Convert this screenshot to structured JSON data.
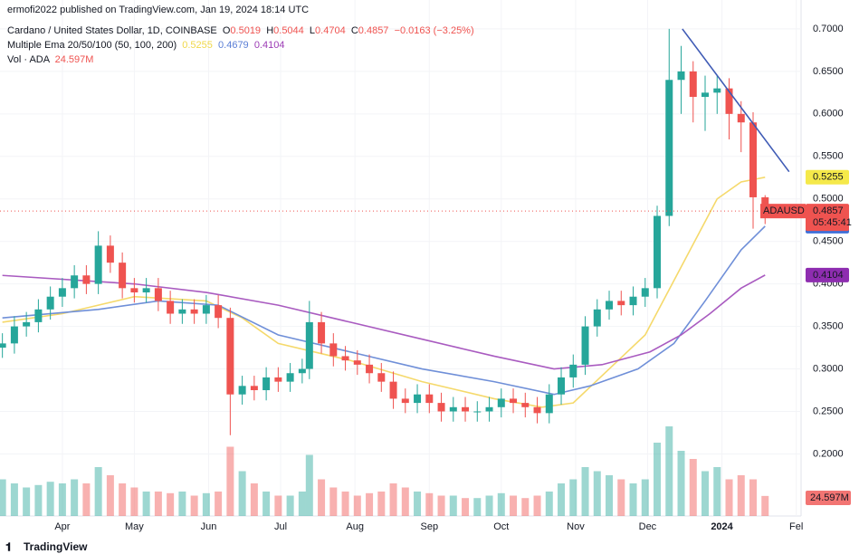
{
  "header": {
    "published": "ermofi2022 published on TradingView.com, Jan 19, 2024 18:14 UTC",
    "symbol": "Cardano / United States Dollar, 1D, COINBASE",
    "ohlc_labels": [
      "O",
      "H",
      "L",
      "C"
    ],
    "change": "−0.0163 (−3.25%)",
    "ema_legend": "Multiple Ema 20/50/100 (50, 100, 200)",
    "volume_legend": "Vol · ADA",
    "footer": "TradingView"
  },
  "chart_data": {
    "type": "candlestick",
    "up_color": "#26a69a",
    "down_color": "#ef5350",
    "xlim": [
      -26,
      308
    ],
    "xticks": [
      {
        "value": 0,
        "label": "Apr"
      },
      {
        "value": 30,
        "label": "May"
      },
      {
        "value": 61,
        "label": "Jun"
      },
      {
        "value": 91,
        "label": "Jul"
      },
      {
        "value": 122,
        "label": "Aug"
      },
      {
        "value": 153,
        "label": "Sep"
      },
      {
        "value": 183,
        "label": "Oct"
      },
      {
        "value": 214,
        "label": "Nov"
      },
      {
        "value": 244,
        "label": "Dec"
      },
      {
        "value": 275,
        "label": "2024"
      },
      {
        "value": 306,
        "label": "Fel"
      }
    ],
    "ylim": [
      0.127,
      0.734
    ],
    "yticks": [
      {
        "value": 0.2,
        "label": "0.2000"
      },
      {
        "value": 0.25,
        "label": "0.2500"
      },
      {
        "value": 0.3,
        "label": "0.3000"
      },
      {
        "value": 0.35,
        "label": "0.3500"
      },
      {
        "value": 0.4,
        "label": "0.4000"
      },
      {
        "value": 0.45,
        "label": "0.4500"
      },
      {
        "value": 0.5,
        "label": "0.5000"
      },
      {
        "value": 0.55,
        "label": "0.5500"
      },
      {
        "value": 0.6,
        "label": "0.6000"
      },
      {
        "value": 0.65,
        "label": "0.6500"
      },
      {
        "value": 0.7,
        "label": "0.7000"
      }
    ],
    "candles": {
      "x": [
        -25,
        -20,
        -15,
        -10,
        -5,
        0,
        5,
        10,
        15,
        20,
        25,
        30,
        35,
        40,
        45,
        50,
        55,
        60,
        65,
        70,
        75,
        80,
        85,
        90,
        95,
        100,
        103,
        108,
        113,
        118,
        123,
        128,
        133,
        138,
        143,
        148,
        153,
        158,
        163,
        168,
        173,
        178,
        183,
        188,
        193,
        198,
        203,
        208,
        213,
        218,
        223,
        228,
        233,
        238,
        243,
        248,
        253,
        258,
        263,
        268,
        273,
        278,
        283,
        288,
        293
      ],
      "open": [
        0.325,
        0.33,
        0.35,
        0.355,
        0.37,
        0.385,
        0.395,
        0.41,
        0.4,
        0.445,
        0.425,
        0.395,
        0.39,
        0.395,
        0.38,
        0.365,
        0.37,
        0.365,
        0.375,
        0.36,
        0.27,
        0.28,
        0.275,
        0.29,
        0.285,
        0.295,
        0.3,
        0.355,
        0.33,
        0.315,
        0.31,
        0.305,
        0.295,
        0.285,
        0.265,
        0.26,
        0.27,
        0.26,
        0.25,
        0.255,
        0.25,
        0.25,
        0.255,
        0.265,
        0.26,
        0.255,
        0.248,
        0.27,
        0.29,
        0.305,
        0.35,
        0.37,
        0.38,
        0.375,
        0.385,
        0.395,
        0.48,
        0.64,
        0.65,
        0.62,
        0.625,
        0.63,
        0.6,
        0.59,
        0.5019
      ],
      "high": [
        0.342,
        0.362,
        0.367,
        0.382,
        0.397,
        0.407,
        0.422,
        0.422,
        0.462,
        0.457,
        0.437,
        0.407,
        0.407,
        0.407,
        0.392,
        0.382,
        0.382,
        0.387,
        0.387,
        0.372,
        0.292,
        0.292,
        0.302,
        0.302,
        0.307,
        0.312,
        0.38,
        0.367,
        0.342,
        0.327,
        0.322,
        0.317,
        0.307,
        0.297,
        0.277,
        0.282,
        0.282,
        0.272,
        0.267,
        0.267,
        0.262,
        0.267,
        0.277,
        0.277,
        0.272,
        0.267,
        0.282,
        0.302,
        0.317,
        0.362,
        0.382,
        0.392,
        0.392,
        0.397,
        0.407,
        0.492,
        0.7,
        0.68,
        0.662,
        0.645,
        0.645,
        0.642,
        0.615,
        0.602,
        0.5044
      ],
      "low": [
        0.313,
        0.318,
        0.338,
        0.343,
        0.358,
        0.373,
        0.383,
        0.388,
        0.388,
        0.413,
        0.383,
        0.378,
        0.378,
        0.368,
        0.353,
        0.353,
        0.353,
        0.353,
        0.348,
        0.222,
        0.258,
        0.263,
        0.263,
        0.273,
        0.273,
        0.283,
        0.288,
        0.318,
        0.303,
        0.298,
        0.293,
        0.283,
        0.273,
        0.253,
        0.248,
        0.248,
        0.248,
        0.238,
        0.238,
        0.238,
        0.238,
        0.238,
        0.243,
        0.248,
        0.243,
        0.236,
        0.236,
        0.258,
        0.278,
        0.293,
        0.338,
        0.358,
        0.363,
        0.363,
        0.373,
        0.383,
        0.468,
        0.6,
        0.59,
        0.58,
        0.6,
        0.57,
        0.555,
        0.465,
        0.4704
      ],
      "close": [
        0.33,
        0.35,
        0.355,
        0.37,
        0.385,
        0.395,
        0.41,
        0.4,
        0.445,
        0.425,
        0.395,
        0.39,
        0.395,
        0.38,
        0.365,
        0.37,
        0.365,
        0.375,
        0.36,
        0.27,
        0.28,
        0.275,
        0.29,
        0.285,
        0.295,
        0.3,
        0.355,
        0.33,
        0.315,
        0.31,
        0.305,
        0.295,
        0.285,
        0.265,
        0.26,
        0.27,
        0.26,
        0.25,
        0.255,
        0.25,
        0.25,
        0.255,
        0.265,
        0.26,
        0.255,
        0.248,
        0.27,
        0.29,
        0.305,
        0.35,
        0.37,
        0.38,
        0.375,
        0.385,
        0.395,
        0.48,
        0.64,
        0.65,
        0.62,
        0.625,
        0.63,
        0.6,
        0.59,
        0.5019,
        0.4857
      ],
      "volume": [
        45,
        40,
        35,
        38,
        42,
        40,
        45,
        40,
        60,
        50,
        40,
        35,
        30,
        30,
        28,
        30,
        25,
        28,
        30,
        85,
        55,
        40,
        30,
        25,
        25,
        30,
        75,
        45,
        35,
        30,
        25,
        28,
        30,
        40,
        35,
        30,
        28,
        25,
        25,
        22,
        22,
        25,
        28,
        25,
        22,
        25,
        30,
        40,
        45,
        60,
        55,
        50,
        45,
        40,
        45,
        90,
        110,
        80,
        70,
        55,
        60,
        45,
        50,
        45,
        24.597
      ],
      "volume_label": "24.597M",
      "symbol_label": "ADAUSD",
      "countdown": "05:45:41"
    },
    "series": [
      {
        "color": "#f5d96b",
        "x": [
          -25,
          0,
          30,
          60,
          75,
          90,
          120,
          150,
          180,
          200,
          213,
          228,
          243,
          258,
          273,
          283,
          293
        ],
        "values": [
          0.355,
          0.365,
          0.385,
          0.38,
          0.36,
          0.33,
          0.31,
          0.285,
          0.265,
          0.255,
          0.26,
          0.3,
          0.34,
          0.42,
          0.5,
          0.52,
          0.5255
        ]
      },
      {
        "color": "#6f8fd8",
        "x": [
          -25,
          15,
          40,
          65,
          90,
          120,
          150,
          180,
          205,
          220,
          240,
          255,
          268,
          283,
          293
        ],
        "values": [
          0.36,
          0.37,
          0.38,
          0.375,
          0.34,
          0.32,
          0.3,
          0.285,
          0.27,
          0.28,
          0.3,
          0.33,
          0.38,
          0.44,
          0.4679
        ]
      },
      {
        "color": "#a95bc0",
        "x": [
          -25,
          30,
          60,
          90,
          120,
          150,
          180,
          205,
          225,
          245,
          258,
          270,
          283,
          293
        ],
        "values": [
          0.41,
          0.4,
          0.39,
          0.375,
          0.355,
          0.335,
          0.315,
          0.3,
          0.305,
          0.32,
          0.34,
          0.365,
          0.395,
          0.4104
        ]
      }
    ],
    "trendline": {
      "color": "#3f5bb5",
      "x": [
        258.5,
        303
      ],
      "values": [
        0.7,
        0.532
      ]
    }
  }
}
